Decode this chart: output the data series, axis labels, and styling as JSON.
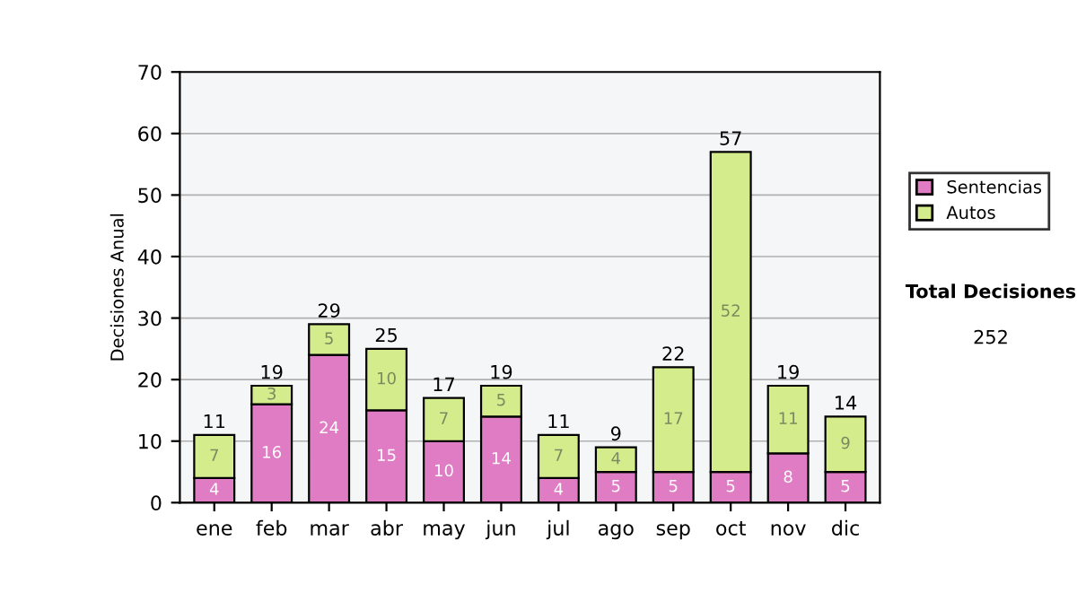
{
  "chart_data": {
    "type": "bar",
    "stacked": true,
    "ylabel": "Decisiones Anual",
    "categories": [
      "ene",
      "feb",
      "mar",
      "abr",
      "may",
      "jun",
      "jul",
      "ago",
      "sep",
      "oct",
      "nov",
      "dic"
    ],
    "series": [
      {
        "name": "Sentencias",
        "color": "#e07cc4",
        "values": [
          4,
          16,
          24,
          15,
          10,
          14,
          4,
          5,
          5,
          5,
          8,
          5
        ]
      },
      {
        "name": "Autos",
        "color": "#d4ec8c",
        "values": [
          7,
          3,
          5,
          10,
          7,
          5,
          7,
          4,
          17,
          52,
          11,
          9
        ]
      }
    ],
    "totals": [
      "11",
      "19",
      "29",
      "25",
      "17",
      "19",
      "11",
      "9",
      "22",
      "57",
      "19",
      "14"
    ],
    "data_labels": true,
    "ylim": [
      0,
      70
    ],
    "yticks": [
      0,
      10,
      20,
      30,
      40,
      50,
      60,
      70
    ],
    "grid": "y",
    "legend": "right",
    "annotations": [
      "Total Decisiones",
      "252"
    ]
  }
}
